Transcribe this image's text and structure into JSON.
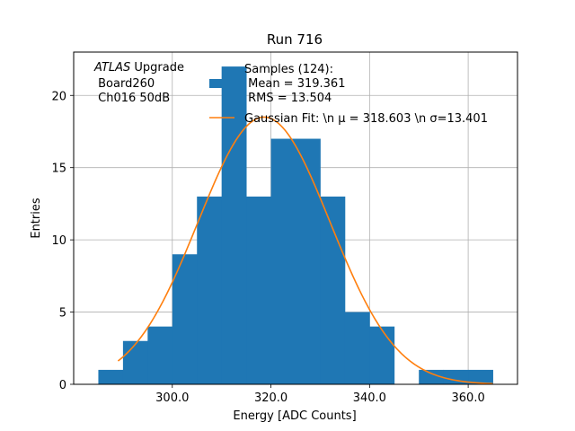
{
  "chart_data": {
    "type": "bar",
    "subtype": "histogram",
    "title": "Run 716",
    "xlabel": "Energy [ADC Counts]",
    "ylabel": "Entries",
    "xlim": [
      280,
      370
    ],
    "ylim": [
      0,
      23
    ],
    "x_ticks": [
      300,
      320,
      340,
      360
    ],
    "x_tick_labels": [
      "300.0",
      "320.0",
      "340.0",
      "360.0"
    ],
    "y_ticks": [
      0,
      5,
      10,
      15,
      20
    ],
    "y_tick_labels": [
      "0",
      "5",
      "10",
      "15",
      "20"
    ],
    "grid": true,
    "bar_color": "#1f77b4",
    "fit_color": "#ff7f0e",
    "bins": [
      {
        "x0": 285,
        "x1": 290,
        "count": 1
      },
      {
        "x0": 290,
        "x1": 295,
        "count": 3
      },
      {
        "x0": 295,
        "x1": 300,
        "count": 4
      },
      {
        "x0": 300,
        "x1": 305,
        "count": 9
      },
      {
        "x0": 305,
        "x1": 310,
        "count": 13
      },
      {
        "x0": 310,
        "x1": 315,
        "count": 22
      },
      {
        "x0": 315,
        "x1": 320,
        "count": 13
      },
      {
        "x0": 320,
        "x1": 325,
        "count": 17
      },
      {
        "x0": 325,
        "x1": 330,
        "count": 17
      },
      {
        "x0": 330,
        "x1": 335,
        "count": 13
      },
      {
        "x0": 335,
        "x1": 340,
        "count": 5
      },
      {
        "x0": 340,
        "x1": 345,
        "count": 4
      },
      {
        "x0": 345,
        "x1": 350,
        "count": 0
      },
      {
        "x0": 350,
        "x1": 355,
        "count": 1
      },
      {
        "x0": 355,
        "x1": 360,
        "count": 1
      },
      {
        "x0": 360,
        "x1": 365,
        "count": 1
      }
    ],
    "fit": {
      "mu": 318.603,
      "sigma": 13.401,
      "amplitude": 18.5,
      "x_start": 289,
      "x_end": 365
    },
    "legend": {
      "position": "top-right",
      "entries": [
        {
          "type": "bar",
          "lines": [
            "Samples (124):",
            " Mean = 319.361",
            " RMS = 13.504"
          ]
        },
        {
          "type": "line",
          "lines": [
            "Gaussian Fit: \\n μ = 318.603 \\n σ=13.401"
          ]
        }
      ]
    },
    "annotation": {
      "lines": [
        "ATLAS Upgrade",
        " Board260",
        " Ch016 50dB"
      ],
      "italic_word": "ATLAS",
      "rest_first_line": " Upgrade"
    }
  }
}
